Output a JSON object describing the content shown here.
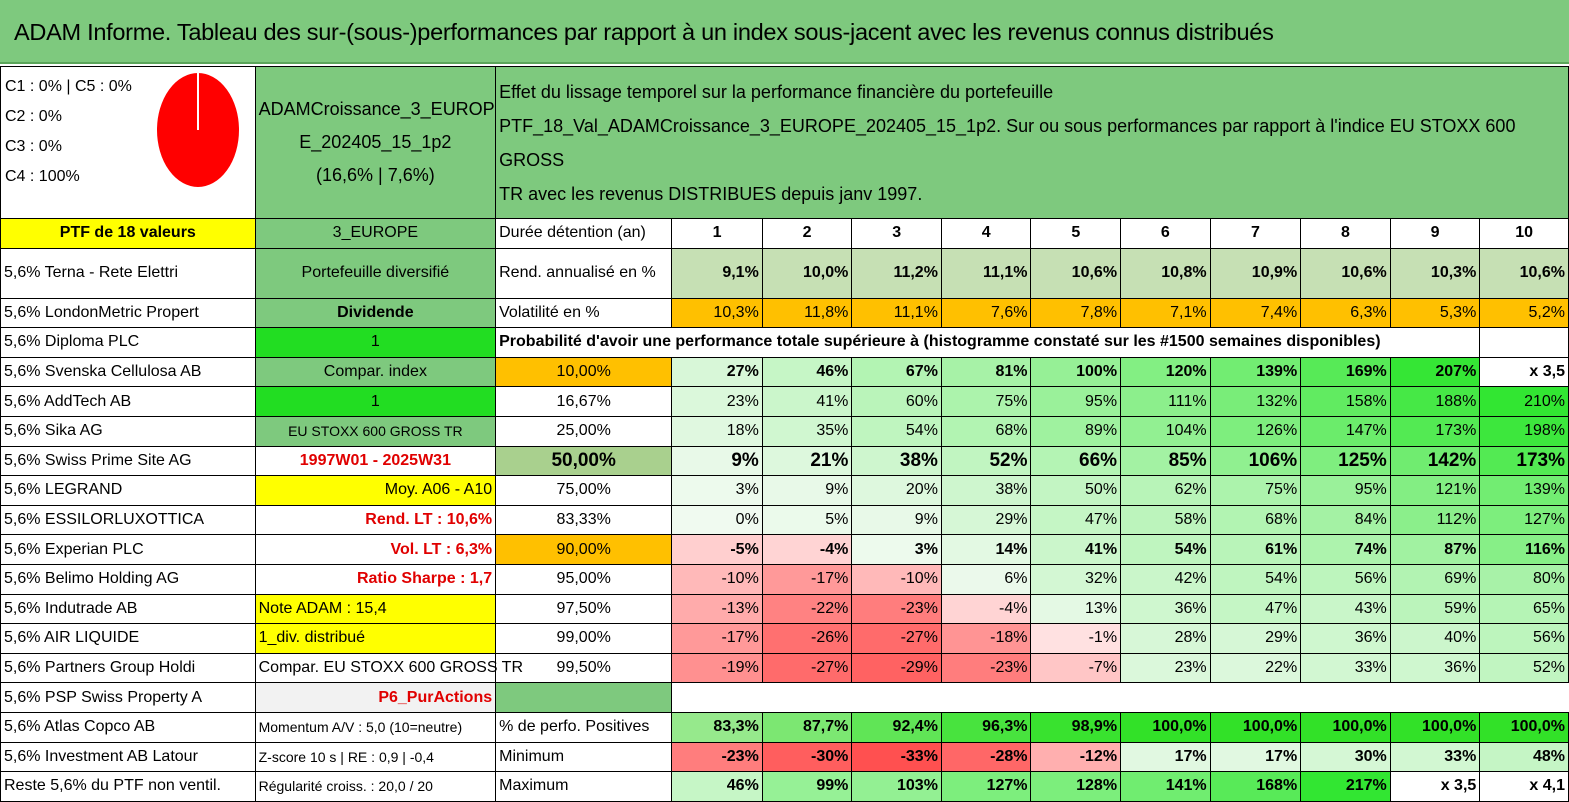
{
  "title": "ADAM Informe. Tableau des sur-(sous-)performances par rapport à un index sous-jacent avec les revenus connus distribués",
  "pie": {
    "labels": [
      "C1 : 0% | C5 : 0%",
      "C2 : 0%",
      "C3 : 0%",
      "C4 : 100%"
    ],
    "slice_color": "#ff0000"
  },
  "portfolio": {
    "name_line1": "ADAMCroissance_3_EUROP",
    "name_line2": "E_202405_15_1p2",
    "name_line3": "(16,6% | 7,6%)",
    "description_line1": "Effet du lissage temporel sur la performance financière du portefeuille",
    "description_line2": "PTF_18_Val_ADAMCroissance_3_EUROPE_202405_15_1p2. Sur ou sous performances par rapport à l'indice EU STOXX 600 GROSS",
    "description_line3": "TR avec les revenus DISTRIBUES depuis janv 1997."
  },
  "holdings": [
    "PTF de 18 valeurs",
    "5,6% Terna - Rete Elettri",
    "5,6% LondonMetric Propert",
    "5,6% Diploma PLC",
    "5,6% Svenska Cellulosa AB",
    "5,6% AddTech AB",
    "5,6% Sika AG",
    "5,6% Swiss Prime Site AG",
    "5,6% LEGRAND",
    "5,6% ESSILORLUXOTTICA",
    "5,6% Experian PLC",
    "5,6% Belimo Holding AG",
    "5,6% Indutrade AB",
    "5,6% AIR LIQUIDE",
    "5,6% Partners Group Holdi",
    "5,6% PSP Swiss Property A",
    "5,6% Atlas Copco AB",
    "5,6% Investment AB Latour",
    "Reste 5,6% du PTF non ventil."
  ],
  "info": [
    "3_EUROPE",
    "Portefeuille diversifié",
    "Dividende",
    "1",
    "Compar. index",
    "1",
    "EU STOXX 600 GROSS TR",
    "1997W01 - 2025W31",
    "Moy. A06 - A10",
    "Rend. LT : 10,6%",
    "Vol. LT : 6,3%",
    "Ratio Sharpe : 1,7",
    "Note ADAM : 15,4",
    "1_div. distribué",
    "Compar. EU STOXX 600 GROSS TR",
    "P6_PurActions",
    "Momentum A/V : 5,0 (10=neutre)",
    "Z-score 10 s | RE : 0,9 | -0,4",
    "Régularité croiss. : 20,0 / 20"
  ],
  "table": {
    "duration_label": "Durée détention (an)",
    "years": [
      "1",
      "2",
      "3",
      "4",
      "5",
      "6",
      "7",
      "8",
      "9",
      "10"
    ],
    "return_label": "Rend. annualisé en %",
    "returns": [
      "9,1%",
      "10,0%",
      "11,2%",
      "11,1%",
      "10,6%",
      "10,8%",
      "10,9%",
      "10,6%",
      "10,3%",
      "10,6%"
    ],
    "vol_label": "Volatilité en %",
    "vols": [
      "10,3%",
      "11,8%",
      "11,1%",
      "7,6%",
      "7,8%",
      "7,1%",
      "7,4%",
      "6,3%",
      "5,3%",
      "5,2%"
    ],
    "prob_header": "Probabilité d'avoir une performance totale supérieure à (histogramme constaté sur les #1500 semaines disponibles)",
    "prob_rows": [
      {
        "p": "10,00%",
        "v": [
          "27%",
          "46%",
          "67%",
          "81%",
          "100%",
          "120%",
          "139%",
          "169%",
          "207%",
          "x 3,5"
        ]
      },
      {
        "p": "16,67%",
        "v": [
          "23%",
          "41%",
          "60%",
          "75%",
          "95%",
          "111%",
          "132%",
          "158%",
          "188%",
          "210%"
        ]
      },
      {
        "p": "25,00%",
        "v": [
          "18%",
          "35%",
          "54%",
          "68%",
          "89%",
          "104%",
          "126%",
          "147%",
          "173%",
          "198%"
        ]
      },
      {
        "p": "50,00%",
        "v": [
          "9%",
          "21%",
          "38%",
          "52%",
          "66%",
          "85%",
          "106%",
          "125%",
          "142%",
          "173%"
        ]
      },
      {
        "p": "75,00%",
        "v": [
          "3%",
          "9%",
          "20%",
          "38%",
          "50%",
          "62%",
          "75%",
          "95%",
          "121%",
          "139%"
        ]
      },
      {
        "p": "83,33%",
        "v": [
          "0%",
          "5%",
          "9%",
          "29%",
          "47%",
          "58%",
          "68%",
          "84%",
          "112%",
          "127%"
        ]
      },
      {
        "p": "90,00%",
        "v": [
          "-5%",
          "-4%",
          "3%",
          "14%",
          "41%",
          "54%",
          "61%",
          "74%",
          "87%",
          "116%"
        ]
      },
      {
        "p": "95,00%",
        "v": [
          "-10%",
          "-17%",
          "-10%",
          "6%",
          "32%",
          "42%",
          "54%",
          "56%",
          "69%",
          "80%"
        ]
      },
      {
        "p": "97,50%",
        "v": [
          "-13%",
          "-22%",
          "-23%",
          "-4%",
          "13%",
          "36%",
          "47%",
          "43%",
          "59%",
          "65%"
        ]
      },
      {
        "p": "99,00%",
        "v": [
          "-17%",
          "-26%",
          "-27%",
          "-18%",
          "-1%",
          "28%",
          "29%",
          "36%",
          "40%",
          "56%"
        ]
      },
      {
        "p": "99,50%",
        "v": [
          "-19%",
          "-27%",
          "-29%",
          "-23%",
          "-7%",
          "23%",
          "22%",
          "33%",
          "36%",
          "52%"
        ]
      }
    ],
    "positive_label": "% de perfo. Positives",
    "positives": [
      "83,3%",
      "87,7%",
      "92,4%",
      "96,3%",
      "98,9%",
      "100,0%",
      "100,0%",
      "100,0%",
      "100,0%",
      "100,0%"
    ],
    "min_label": "Minimum",
    "minimums": [
      "-23%",
      "-30%",
      "-33%",
      "-28%",
      "-12%",
      "17%",
      "17%",
      "30%",
      "33%",
      "48%"
    ],
    "max_label": "Maximum",
    "maximums": [
      "46%",
      "99%",
      "103%",
      "127%",
      "128%",
      "141%",
      "168%",
      "217%",
      "x 3,5",
      "x 4,1"
    ]
  },
  "colors": {
    "title_green": "#7ec97e",
    "yellow": "#ffff00",
    "orange": "#ffc000",
    "bright_green": "#22dd22",
    "red_text": "#e00000"
  }
}
